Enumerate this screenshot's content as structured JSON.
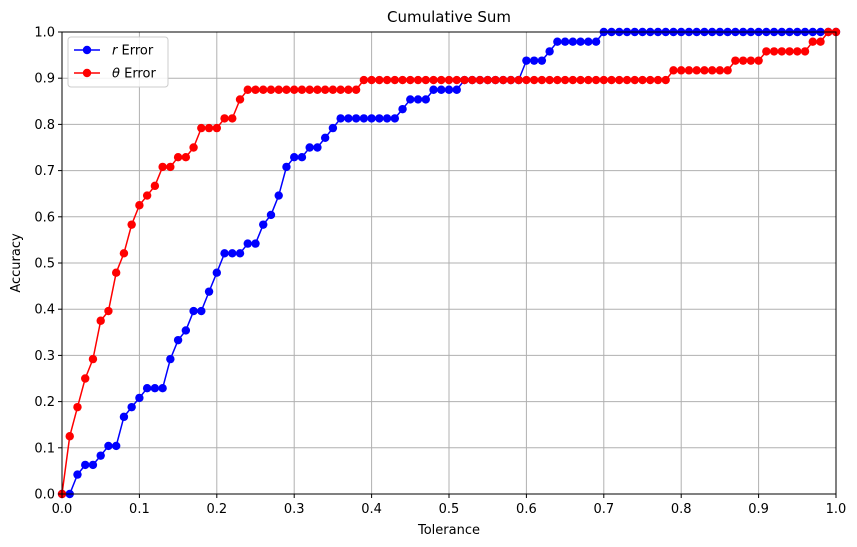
{
  "chart_data": {
    "type": "line",
    "title": "Cumulative Sum",
    "xlabel": "Tolerance",
    "ylabel": "Accuracy",
    "xlim": [
      0,
      1
    ],
    "ylim": [
      0,
      1
    ],
    "xticks": [
      "0.0",
      "0.1",
      "0.2",
      "0.3",
      "0.4",
      "0.5",
      "0.6",
      "0.7",
      "0.8",
      "0.9",
      "1.0"
    ],
    "yticks": [
      "0.0",
      "0.1",
      "0.2",
      "0.3",
      "0.4",
      "0.5",
      "0.6",
      "0.7",
      "0.8",
      "0.9",
      "1.0"
    ],
    "grid": true,
    "legend_position": "top-left",
    "x": [
      0.0,
      0.01,
      0.02,
      0.03,
      0.04,
      0.05,
      0.06,
      0.07,
      0.08,
      0.09,
      0.1,
      0.11,
      0.12,
      0.13,
      0.14,
      0.15,
      0.16,
      0.17,
      0.18,
      0.19,
      0.2,
      0.21,
      0.22,
      0.23,
      0.24,
      0.25,
      0.26,
      0.27,
      0.28,
      0.29,
      0.3,
      0.31,
      0.32,
      0.33,
      0.34,
      0.35,
      0.36,
      0.37,
      0.38,
      0.39,
      0.4,
      0.41,
      0.42,
      0.43,
      0.44,
      0.45,
      0.46,
      0.47,
      0.48,
      0.49,
      0.5,
      0.51,
      0.52,
      0.53,
      0.54,
      0.55,
      0.56,
      0.57,
      0.58,
      0.59,
      0.6,
      0.61,
      0.62,
      0.63,
      0.64,
      0.65,
      0.66,
      0.67,
      0.68,
      0.69,
      0.7,
      0.71,
      0.72,
      0.73,
      0.74,
      0.75,
      0.76,
      0.77,
      0.78,
      0.79,
      0.8,
      0.81,
      0.82,
      0.83,
      0.84,
      0.85,
      0.86,
      0.87,
      0.88,
      0.89,
      0.9,
      0.91,
      0.92,
      0.93,
      0.94,
      0.95,
      0.96,
      0.97,
      0.98,
      0.99,
      1.0
    ],
    "series": [
      {
        "name": "r Error",
        "legend_prefix": "r",
        "legend_suffix": " Error",
        "color": "#0000ff",
        "values": [
          0.0,
          0.0,
          0.042,
          0.063,
          0.063,
          0.083,
          0.104,
          0.104,
          0.167,
          0.188,
          0.208,
          0.229,
          0.229,
          0.229,
          0.292,
          0.333,
          0.354,
          0.396,
          0.396,
          0.438,
          0.479,
          0.521,
          0.521,
          0.521,
          0.542,
          0.542,
          0.583,
          0.604,
          0.646,
          0.708,
          0.729,
          0.729,
          0.75,
          0.75,
          0.771,
          0.792,
          0.813,
          0.813,
          0.813,
          0.813,
          0.813,
          0.813,
          0.813,
          0.813,
          0.833,
          0.854,
          0.854,
          0.854,
          0.875,
          0.875,
          0.875,
          0.875,
          0.896,
          0.896,
          0.896,
          0.896,
          0.896,
          0.896,
          0.896,
          0.896,
          0.938,
          0.938,
          0.938,
          0.958,
          0.979,
          0.979,
          0.979,
          0.979,
          0.979,
          0.979,
          1.0,
          1.0,
          1.0,
          1.0,
          1.0,
          1.0,
          1.0,
          1.0,
          1.0,
          1.0,
          1.0,
          1.0,
          1.0,
          1.0,
          1.0,
          1.0,
          1.0,
          1.0,
          1.0,
          1.0,
          1.0,
          1.0,
          1.0,
          1.0,
          1.0,
          1.0,
          1.0,
          1.0,
          1.0,
          1.0,
          1.0
        ]
      },
      {
        "name": "θ Error",
        "legend_prefix": "θ",
        "legend_suffix": " Error",
        "color": "#ff0000",
        "values": [
          0.0,
          0.125,
          0.188,
          0.25,
          0.292,
          0.375,
          0.396,
          0.479,
          0.521,
          0.583,
          0.625,
          0.646,
          0.667,
          0.708,
          0.708,
          0.729,
          0.729,
          0.75,
          0.792,
          0.792,
          0.792,
          0.813,
          0.813,
          0.854,
          0.875,
          0.875,
          0.875,
          0.875,
          0.875,
          0.875,
          0.875,
          0.875,
          0.875,
          0.875,
          0.875,
          0.875,
          0.875,
          0.875,
          0.875,
          0.896,
          0.896,
          0.896,
          0.896,
          0.896,
          0.896,
          0.896,
          0.896,
          0.896,
          0.896,
          0.896,
          0.896,
          0.896,
          0.896,
          0.896,
          0.896,
          0.896,
          0.896,
          0.896,
          0.896,
          0.896,
          0.896,
          0.896,
          0.896,
          0.896,
          0.896,
          0.896,
          0.896,
          0.896,
          0.896,
          0.896,
          0.896,
          0.896,
          0.896,
          0.896,
          0.896,
          0.896,
          0.896,
          0.896,
          0.896,
          0.917,
          0.917,
          0.917,
          0.917,
          0.917,
          0.917,
          0.917,
          0.917,
          0.938,
          0.938,
          0.938,
          0.938,
          0.958,
          0.958,
          0.958,
          0.958,
          0.958,
          0.958,
          0.979,
          0.979,
          1.0,
          1.0
        ]
      }
    ]
  }
}
